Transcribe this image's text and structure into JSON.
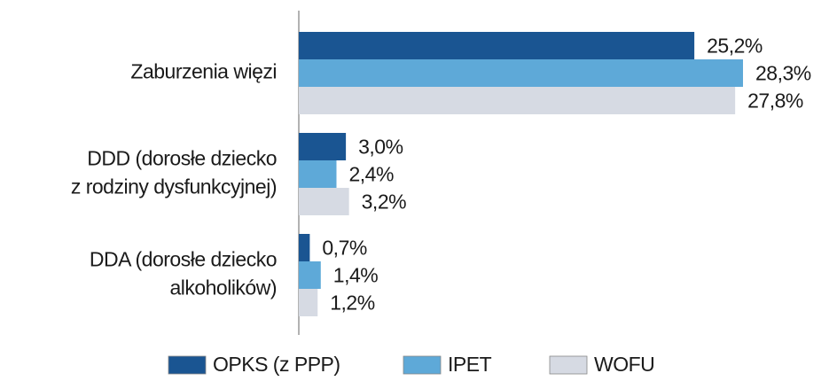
{
  "chart_data": {
    "type": "hbar",
    "categories": [
      "Zaburzenia więzi",
      "DDD (dorosłe dziecko\nz rodziny dysfunkcyjnej)",
      "DDA (dorosłe dziecko\nalkoholików)"
    ],
    "series": [
      {
        "name": "OPKS (z PPP)",
        "color": "#1a5592",
        "values": [
          25.2,
          3.0,
          0.7
        ],
        "value_labels": [
          "25,2%",
          "3,0%",
          "0,7%"
        ]
      },
      {
        "name": "IPET",
        "color": "#5ea9d8",
        "values": [
          28.3,
          2.4,
          1.4
        ],
        "value_labels": [
          "28,3%",
          "2,4%",
          "1,4%"
        ]
      },
      {
        "name": "WOFU",
        "color": "#d6dae3",
        "values": [
          27.8,
          3.2,
          1.2
        ],
        "value_labels": [
          "27,8%",
          "3,2%",
          "1,2%"
        ]
      }
    ],
    "legend": "bottom"
  }
}
